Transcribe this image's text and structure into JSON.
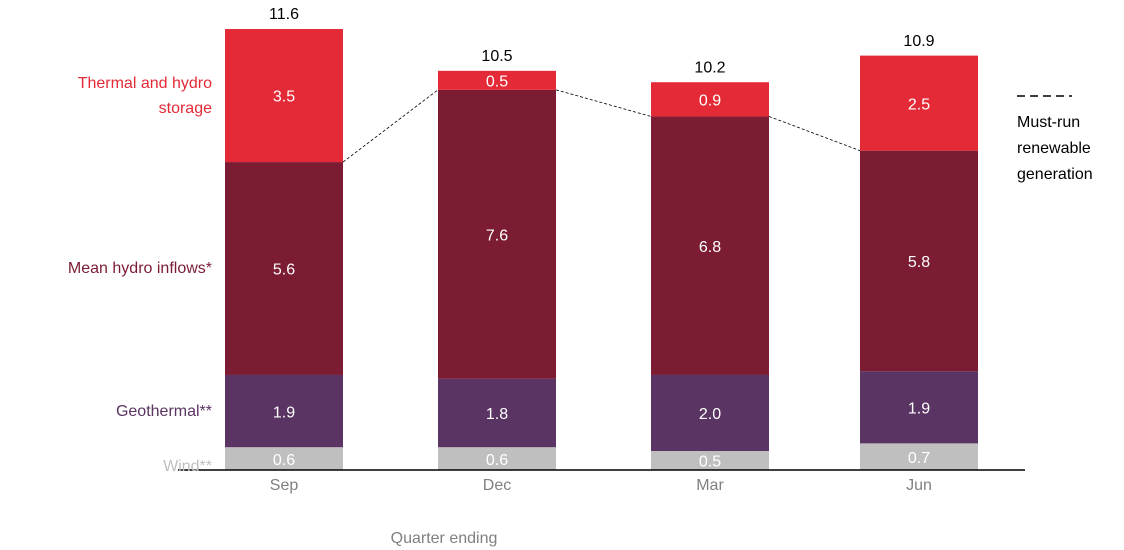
{
  "chart_data": {
    "type": "stacked_bar",
    "categories": [
      "Sep",
      "Dec",
      "Mar",
      "Jun"
    ],
    "series": [
      {
        "name": "Wind**",
        "color": "#bfbfbf",
        "values": [
          0.6,
          0.6,
          0.5,
          0.7
        ]
      },
      {
        "name": "Geothermal**",
        "color": "#5a3462",
        "values": [
          1.9,
          1.8,
          2.0,
          1.9
        ],
        "value_labels": [
          "1.9",
          "1.8",
          "2.0",
          "1.9"
        ]
      },
      {
        "name": "Mean hydro inflows*",
        "color": "#7b1c32",
        "values": [
          5.6,
          7.6,
          6.8,
          5.8
        ]
      },
      {
        "name": "Thermal and hydro storage",
        "color": "#e42a36",
        "values": [
          3.5,
          0.5,
          0.9,
          2.5
        ]
      }
    ],
    "totals": [
      11.6,
      10.5,
      10.2,
      10.9
    ],
    "line_legend": "Must-run renewable generation",
    "xlabel": "Quarter ending"
  }
}
